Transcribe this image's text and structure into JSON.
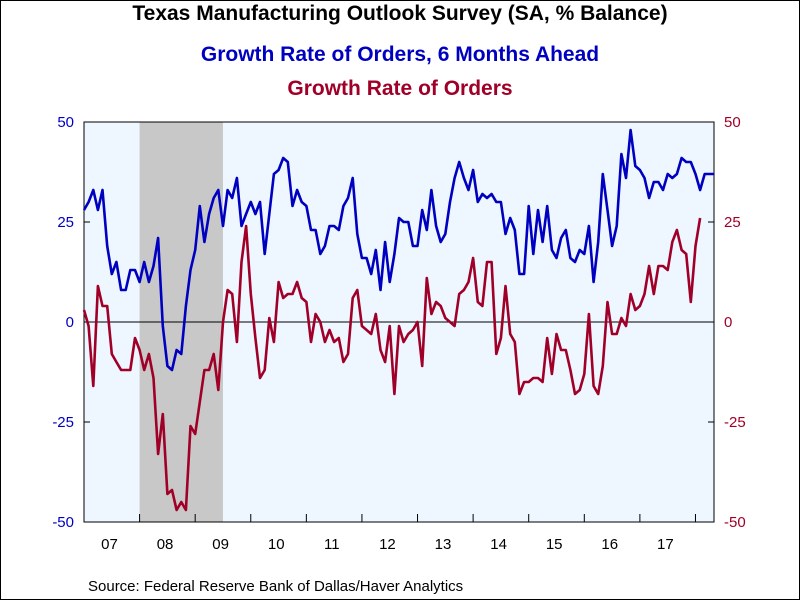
{
  "title": "Texas Manufacturing Outlook Survey (SA, % Balance)",
  "source": "Source:  Federal Reserve Bank of Dallas/Haver Analytics",
  "colors": {
    "series1": "#0000c0",
    "series2": "#a00028",
    "plot_bg": "#eef6ff",
    "recession": "#c8c8c8"
  },
  "chart_data": {
    "type": "line",
    "x_start": "2007-01",
    "frequency": "monthly",
    "x_tick_labels": [
      "07",
      "08",
      "09",
      "10",
      "11",
      "12",
      "13",
      "14",
      "15",
      "16",
      "17"
    ],
    "ylim_left": [
      -50,
      50
    ],
    "ylim_right": [
      -50,
      50
    ],
    "y_ticks_left": [
      "50",
      "25",
      "0",
      "-25",
      "-50"
    ],
    "y_ticks_right": [
      "50",
      "25",
      "0",
      "-25",
      "-50"
    ],
    "recession_shading": {
      "start": "2008-01",
      "end": "2009-06"
    },
    "zero_line": true,
    "series": [
      {
        "name": "Growth Rate of Orders, 6 Months Ahead",
        "axis": "left",
        "values": [
          28,
          30,
          33,
          28,
          33,
          19,
          12,
          15,
          8,
          8,
          13,
          13,
          10,
          15,
          10,
          14,
          21,
          -1,
          -11,
          -12,
          -7,
          -8,
          4,
          13,
          18,
          29,
          20,
          27,
          31,
          33,
          24,
          33,
          31,
          36,
          24,
          27,
          30,
          27,
          30,
          17,
          27,
          37,
          38,
          41,
          40,
          29,
          33,
          30,
          29,
          23,
          23,
          17,
          19,
          24,
          24,
          23,
          29,
          31,
          36,
          22,
          16,
          16,
          12,
          18,
          8,
          20,
          10,
          17,
          26,
          25,
          25,
          19,
          19,
          28,
          23,
          33,
          24,
          20,
          22,
          30,
          36,
          40,
          36,
          33,
          38,
          30,
          32,
          31,
          32,
          30,
          30,
          22,
          26,
          23,
          12,
          12,
          29,
          17,
          28,
          20,
          29,
          18,
          16,
          21,
          23,
          16,
          15,
          18,
          17,
          24,
          10,
          20,
          37,
          28,
          19,
          24,
          42,
          36,
          48,
          39,
          38,
          36,
          31,
          35,
          35,
          33,
          37,
          36,
          37,
          41,
          40,
          40,
          37,
          33,
          37,
          37,
          37
        ]
      },
      {
        "name": "Growth Rate of Orders",
        "axis": "right",
        "values": [
          3,
          -1,
          -16,
          9,
          4,
          4,
          -8,
          -10,
          -12,
          -12,
          -12,
          -4,
          -7,
          -12,
          -8,
          -14,
          -33,
          -23,
          -43,
          -42,
          -47,
          -45,
          -47,
          -26,
          -28,
          -20,
          -12,
          -12,
          -8,
          -17,
          0,
          8,
          7,
          -5,
          15,
          24,
          7,
          -4,
          -14,
          -12,
          1,
          -5,
          10,
          6,
          7,
          7,
          10,
          6,
          5,
          -5,
          2,
          0,
          -5,
          -2,
          -5,
          -4,
          -10,
          -8,
          6,
          8,
          -1,
          -2,
          -3,
          2,
          -7,
          -10,
          -1,
          -18,
          -1,
          -5,
          -3,
          -2,
          0,
          -11,
          11,
          2,
          5,
          4,
          1,
          0,
          -1,
          7,
          8,
          10,
          16,
          5,
          4,
          15,
          15,
          -8,
          -4,
          9,
          -3,
          -5,
          -18,
          -15,
          -15,
          -14,
          -14,
          -15,
          -4,
          -13,
          -3,
          -7,
          -7,
          -12,
          -18,
          -17,
          -13,
          2,
          -16,
          -18,
          -11,
          5,
          -3,
          -3,
          1,
          -1,
          7,
          3,
          4,
          7,
          14,
          7,
          14,
          14,
          13,
          20,
          23,
          18,
          17,
          5,
          19,
          26
        ]
      }
    ]
  }
}
